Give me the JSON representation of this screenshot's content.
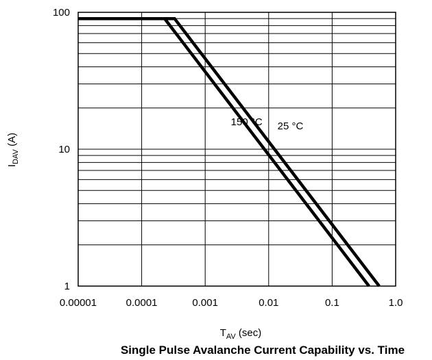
{
  "chart_data": {
    "type": "line",
    "title": "Single Pulse Avalanche Current Capability vs. Time",
    "xlabel": {
      "main": "T",
      "sub": "AV",
      "unit": " (sec)"
    },
    "ylabel": {
      "main": "I",
      "sub": "DAV",
      "unit": " (A)"
    },
    "x_scale": "log",
    "y_scale": "log",
    "xlim": [
      1e-05,
      1.0
    ],
    "ylim": [
      1,
      100
    ],
    "x_ticks": [
      1e-05,
      0.0001,
      0.001,
      0.01,
      0.1,
      1.0
    ],
    "x_tick_labels": [
      "0.00001",
      "0.0001",
      "0.001",
      "0.01",
      "0.1",
      "1.0"
    ],
    "y_ticks": [
      1,
      10,
      100
    ],
    "y_tick_labels": [
      "1",
      "10",
      "100"
    ],
    "grid": true,
    "series": [
      {
        "name": "25 °C",
        "x": [
          1e-05,
          0.00033,
          0.55
        ],
        "y": [
          90,
          90,
          1
        ]
      },
      {
        "name": "150 °C",
        "x": [
          1e-05,
          0.00023,
          0.38
        ],
        "y": [
          90,
          90,
          1
        ]
      }
    ],
    "annotations": [
      {
        "text": "150 °C",
        "x": 0.0045,
        "y": 15
      },
      {
        "text": "25 °C",
        "x": 0.022,
        "y": 14
      }
    ],
    "colors": {
      "line": "#000000",
      "grid": "#000000"
    }
  }
}
